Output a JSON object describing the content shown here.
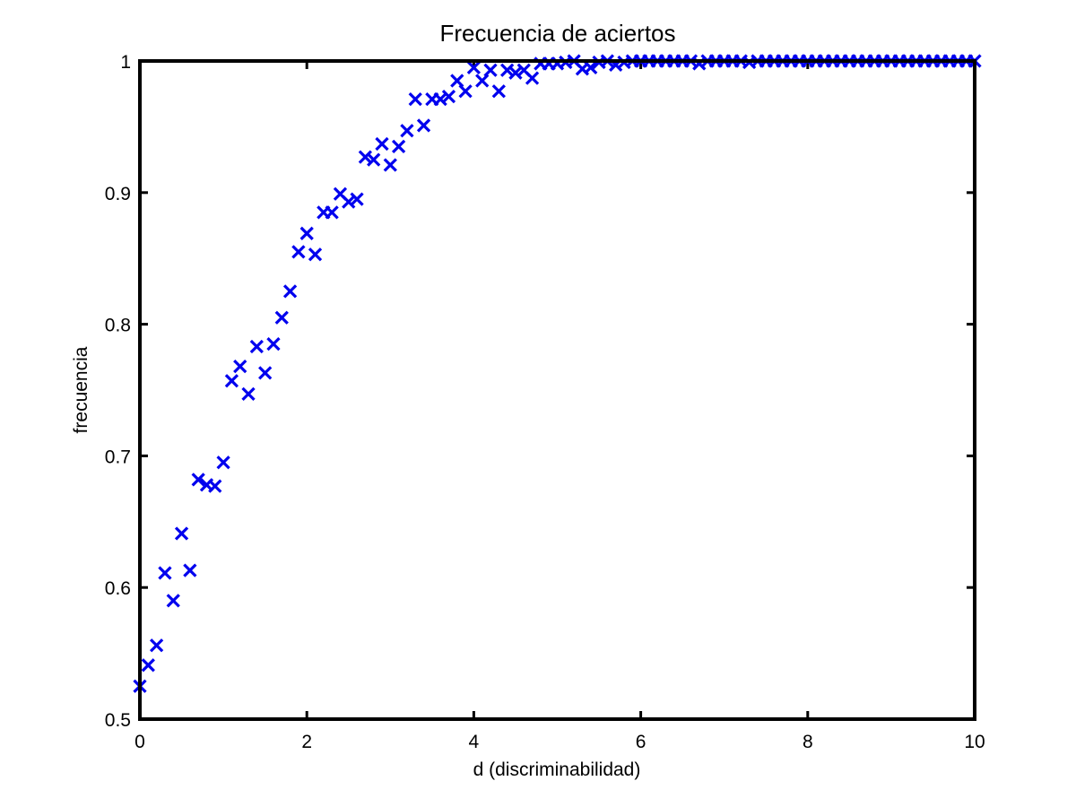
{
  "chart_data": {
    "type": "scatter",
    "title": "Frecuencia de aciertos",
    "xlabel": "d (discriminabilidad)",
    "ylabel": "frecuencia",
    "xlim": [
      0,
      10
    ],
    "ylim": [
      0.5,
      1
    ],
    "xticks": [
      0,
      2,
      4,
      6,
      8,
      10
    ],
    "xtick_labels": [
      "0",
      "2",
      "4",
      "6",
      "8",
      "10"
    ],
    "yticks": [
      0.5,
      0.6,
      0.7,
      0.8,
      0.9,
      1
    ],
    "ytick_labels": [
      "0.5",
      "0.6",
      "0.7",
      "0.8",
      "0.9",
      "1"
    ],
    "grid": false,
    "marker": "x",
    "marker_color": "#0000ee",
    "series": [
      {
        "x": [
          0,
          0.1,
          0.2,
          0.3,
          0.4,
          0.5,
          0.6,
          0.7,
          0.8,
          0.9,
          1.0,
          1.1,
          1.2,
          1.3,
          1.4,
          1.5,
          1.6,
          1.7,
          1.8,
          1.9,
          2.0,
          2.1,
          2.2,
          2.3,
          2.4,
          2.5,
          2.6,
          2.7,
          2.8,
          2.9,
          3.0,
          3.1,
          3.2,
          3.3,
          3.4,
          3.5,
          3.6,
          3.7,
          3.8,
          3.9,
          4.0,
          4.1,
          4.2,
          4.3,
          4.4,
          4.5,
          4.6,
          4.7,
          4.8,
          4.9,
          5.0,
          5.1,
          5.2,
          5.3,
          5.4,
          5.5,
          5.6,
          5.7,
          5.8,
          5.9,
          6.0,
          6.1,
          6.2,
          6.3,
          6.4,
          6.5,
          6.6,
          6.7,
          6.8,
          6.9,
          7.0,
          7.1,
          7.2,
          7.3,
          7.4,
          7.5,
          7.6,
          7.7,
          7.8,
          7.9,
          8.0,
          8.1,
          8.2,
          8.3,
          8.4,
          8.5,
          8.6,
          8.7,
          8.8,
          8.9,
          9.0,
          9.1,
          9.2,
          9.3,
          9.4,
          9.5,
          9.6,
          9.7,
          9.8,
          9.9,
          10.0
        ],
        "y": [
          0.525,
          0.541,
          0.556,
          0.611,
          0.59,
          0.641,
          0.613,
          0.682,
          0.678,
          0.677,
          0.695,
          0.757,
          0.768,
          0.747,
          0.783,
          0.763,
          0.785,
          0.805,
          0.825,
          0.855,
          0.869,
          0.853,
          0.885,
          0.885,
          0.899,
          0.893,
          0.895,
          0.927,
          0.925,
          0.937,
          0.921,
          0.935,
          0.947,
          0.971,
          0.951,
          0.971,
          0.971,
          0.973,
          0.985,
          0.977,
          0.995,
          0.985,
          0.993,
          0.977,
          0.993,
          0.991,
          0.993,
          0.987,
          0.998,
          0.998,
          0.998,
          0.999,
          1.0,
          0.994,
          0.995,
          0.999,
          1.0,
          0.997,
          0.999,
          1.0,
          1.0,
          1.0,
          1.0,
          1.0,
          1.0,
          1.0,
          1.0,
          0.998,
          1.0,
          1.0,
          1.0,
          1.0,
          1.0,
          0.999,
          1.0,
          1.0,
          1.0,
          1.0,
          1.0,
          1.0,
          1.0,
          1.0,
          1.0,
          1.0,
          1.0,
          1.0,
          1.0,
          1.0,
          1.0,
          1.0,
          1.0,
          1.0,
          1.0,
          1.0,
          1.0,
          1.0,
          1.0,
          1.0,
          1.0,
          1.0,
          1.0
        ]
      }
    ]
  }
}
